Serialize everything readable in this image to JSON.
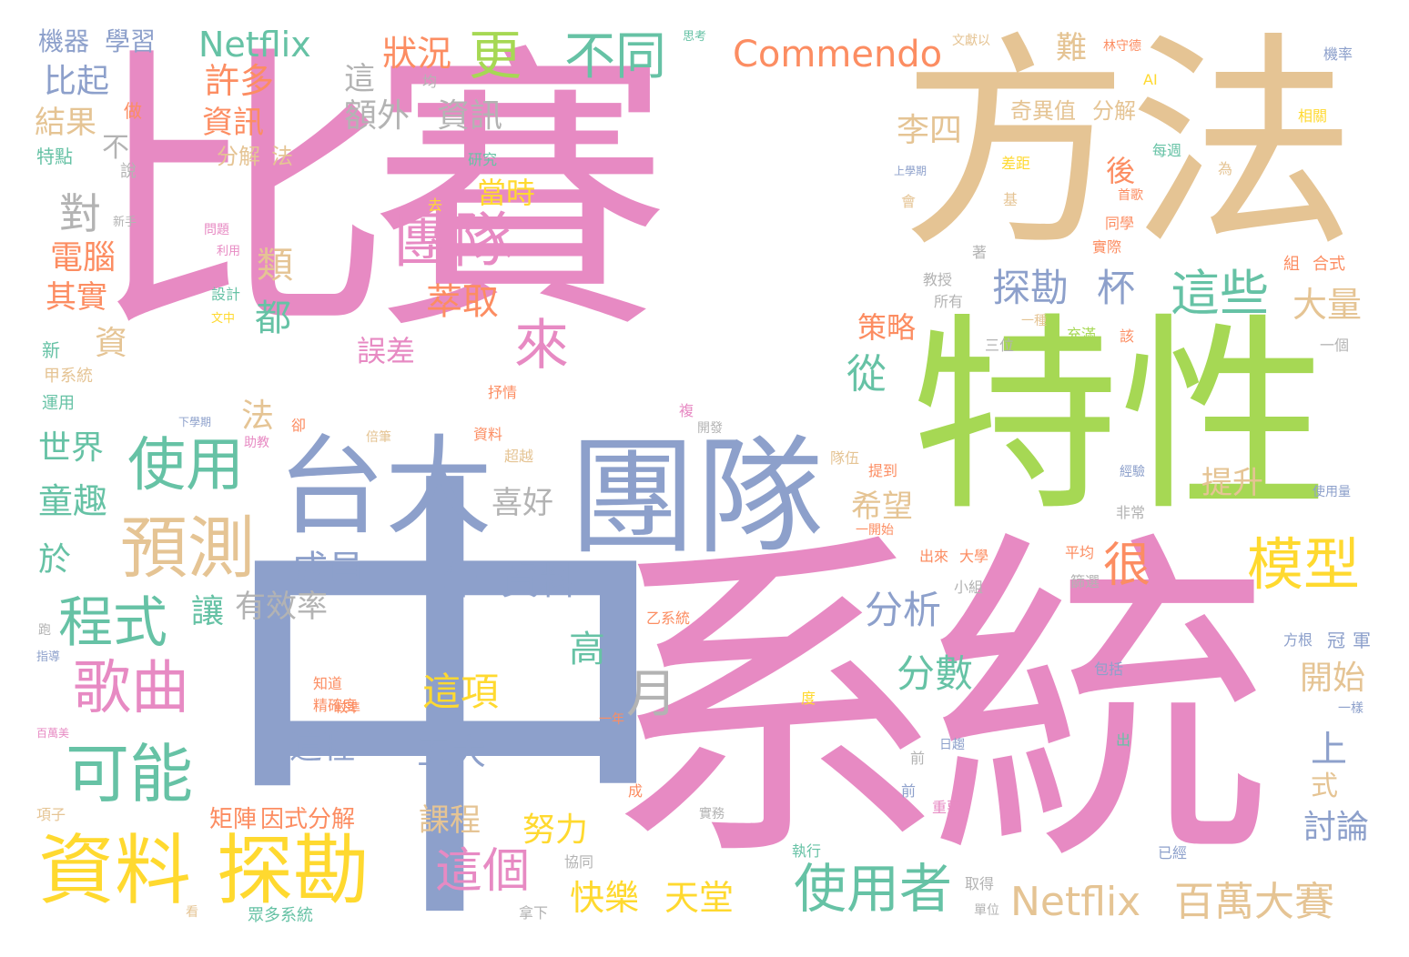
{
  "palette": {
    "pink": "#e78ac3",
    "tan": "#e5c494",
    "green": "#a6d854",
    "blue": "#8da0cb",
    "orange": "#fc8d62",
    "yellow": "#ffd92f",
    "teal": "#66c2a5",
    "gray": "#b3b3b3"
  },
  "words": [
    {
      "text": "比賽"
    },
    {
      "text": "方法"
    },
    {
      "text": "中"
    },
    {
      "text": "系統"
    },
    {
      "text": "特性"
    },
    {
      "text": "團隊"
    },
    {
      "text": "台大"
    },
    {
      "text": "資料"
    },
    {
      "text": "探勘"
    },
    {
      "text": "預測"
    },
    {
      "text": "使用"
    },
    {
      "text": "歌曲"
    },
    {
      "text": "程式"
    },
    {
      "text": "可能"
    },
    {
      "text": "團隊"
    },
    {
      "text": "模型"
    },
    {
      "text": "使用者"
    },
    {
      "text": "Netflix"
    },
    {
      "text": "百萬大賽"
    },
    {
      "text": "Commendo"
    },
    {
      "text": "Netflix"
    },
    {
      "text": "更"
    },
    {
      "text": "不同"
    },
    {
      "text": "狀況"
    },
    {
      "text": "許多"
    },
    {
      "text": "資訊"
    },
    {
      "text": "這"
    },
    {
      "text": "額外"
    },
    {
      "text": "資訊"
    },
    {
      "text": "機器"
    },
    {
      "text": "學習"
    },
    {
      "text": "比起"
    },
    {
      "text": "結果"
    },
    {
      "text": "不"
    },
    {
      "text": "分解"
    },
    {
      "text": "法"
    },
    {
      "text": "對"
    },
    {
      "text": "電腦"
    },
    {
      "text": "類"
    },
    {
      "text": "其實"
    },
    {
      "text": "都"
    },
    {
      "text": "萃取"
    },
    {
      "text": "探勘"
    },
    {
      "text": "杯"
    },
    {
      "text": "這些"
    },
    {
      "text": "來"
    },
    {
      "text": "從"
    },
    {
      "text": "李四"
    },
    {
      "text": "後"
    },
    {
      "text": "當時"
    },
    {
      "text": "難"
    },
    {
      "text": "奇異值"
    },
    {
      "text": "分解"
    },
    {
      "text": "策略"
    },
    {
      "text": "誤差"
    },
    {
      "text": "大量"
    },
    {
      "text": "很"
    },
    {
      "text": "希望"
    },
    {
      "text": "成員"
    },
    {
      "text": "喜好"
    },
    {
      "text": "世界"
    },
    {
      "text": "童趣"
    },
    {
      "text": "於"
    },
    {
      "text": "法"
    },
    {
      "text": "讓"
    },
    {
      "text": "有效率"
    },
    {
      "text": "年"
    },
    {
      "text": "資料"
    },
    {
      "text": "分析"
    },
    {
      "text": "分數"
    },
    {
      "text": "提升"
    },
    {
      "text": "月"
    },
    {
      "text": "高"
    },
    {
      "text": "這項"
    },
    {
      "text": "五大"
    },
    {
      "text": "這種"
    },
    {
      "text": "開始"
    },
    {
      "text": "上"
    },
    {
      "text": "式"
    },
    {
      "text": "討論"
    },
    {
      "text": "矩陣"
    },
    {
      "text": "因式分解"
    },
    {
      "text": "課程"
    },
    {
      "text": "努力"
    },
    {
      "text": "這個"
    },
    {
      "text": "快樂"
    },
    {
      "text": "天堂"
    },
    {
      "text": "眾多系統"
    },
    {
      "text": "資"
    },
    {
      "text": "新"
    },
    {
      "text": "甲系統"
    },
    {
      "text": "運用"
    },
    {
      "text": "特點"
    },
    {
      "text": "說"
    },
    {
      "text": "做"
    },
    {
      "text": "設計"
    },
    {
      "text": "問題"
    },
    {
      "text": "研究"
    },
    {
      "text": "思考"
    },
    {
      "text": "文獻以"
    },
    {
      "text": "林守德"
    },
    {
      "text": "機率"
    },
    {
      "text": "AI"
    },
    {
      "text": "相關"
    },
    {
      "text": "每週"
    },
    {
      "text": "差距"
    },
    {
      "text": "首歌"
    },
    {
      "text": "同學"
    },
    {
      "text": "實際"
    },
    {
      "text": "組"
    },
    {
      "text": "合式"
    },
    {
      "text": "教授"
    },
    {
      "text": "所有"
    },
    {
      "text": "三位"
    },
    {
      "text": "充滿"
    },
    {
      "text": "一個"
    },
    {
      "text": "抒情"
    },
    {
      "text": "複"
    },
    {
      "text": "開發"
    },
    {
      "text": "資料"
    },
    {
      "text": "超越"
    },
    {
      "text": "隊伍"
    },
    {
      "text": "提到"
    },
    {
      "text": "經驗"
    },
    {
      "text": "非常"
    },
    {
      "text": "使用量"
    },
    {
      "text": "一開始"
    },
    {
      "text": "出來"
    },
    {
      "text": "大學"
    },
    {
      "text": "平均"
    },
    {
      "text": "篩選"
    },
    {
      "text": "小組"
    },
    {
      "text": "乙系統"
    },
    {
      "text": "方根"
    },
    {
      "text": "冠"
    },
    {
      "text": "軍"
    },
    {
      "text": "包括"
    },
    {
      "text": "一樣"
    },
    {
      "text": "精確度"
    },
    {
      "text": "知道"
    },
    {
      "text": "較準"
    },
    {
      "text": "執行"
    },
    {
      "text": "取得"
    },
    {
      "text": "已經"
    },
    {
      "text": "拿下"
    },
    {
      "text": "協同"
    },
    {
      "text": "實務"
    },
    {
      "text": "單位"
    },
    {
      "text": "重要"
    },
    {
      "text": "前"
    },
    {
      "text": "日趨"
    },
    {
      "text": "出"
    },
    {
      "text": "項子"
    },
    {
      "text": "看"
    },
    {
      "text": "助教"
    },
    {
      "text": "倍筆"
    },
    {
      "text": "度"
    },
    {
      "text": "一年"
    },
    {
      "text": "新手"
    },
    {
      "text": "利用"
    },
    {
      "text": "文中"
    },
    {
      "text": "下學期"
    },
    {
      "text": "上學期"
    },
    {
      "text": "卻"
    },
    {
      "text": "著"
    },
    {
      "text": "基"
    },
    {
      "text": "該"
    },
    {
      "text": "為"
    },
    {
      "text": "去"
    },
    {
      "text": "均"
    },
    {
      "text": "會"
    },
    {
      "text": "一種"
    },
    {
      "text": "跑"
    },
    {
      "text": "指導"
    },
    {
      "text": "百萬美"
    },
    {
      "text": "小組"
    },
    {
      "text": "成"
    },
    {
      "text": "前"
    }
  ]
}
